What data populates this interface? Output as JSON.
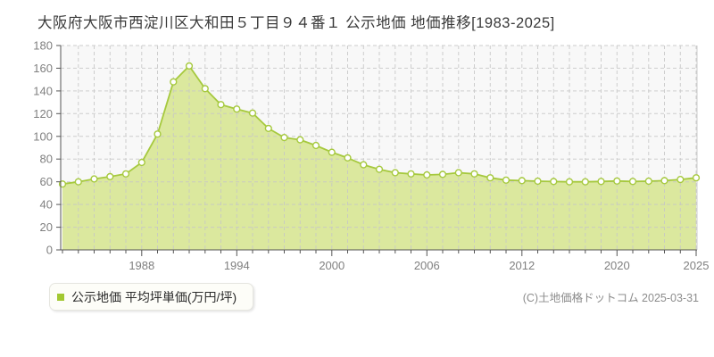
{
  "title": "大阪府大阪市西淀川区大和田５丁目９４番１ 公示地価 地価推移[1983-2025]",
  "legend": {
    "label": "公示地価 平均坪単価(万円/坪)",
    "bullet_color": "#a2c832"
  },
  "copyright": "(C)土地価格ドットコム 2025-03-31",
  "colors": {
    "line": "#a6c93e",
    "marker_fill": "#ffffff",
    "area_fill": "#dbe89e",
    "plot_bg": "#f8f8f8",
    "grid": "#c6c6c6",
    "axis": "#555555",
    "tick_label": "#808080",
    "border": "#cccccc"
  },
  "chart_data": {
    "type": "area",
    "title": "公示地価 地価推移[1983-2025]",
    "ylabel": "平均坪単価(万円/坪)",
    "ylim": [
      0,
      180
    ],
    "y_tick_step": 20,
    "y_tick_labels": [
      "0",
      "20",
      "40",
      "60",
      "80",
      "100",
      "120",
      "140",
      "160",
      "180"
    ],
    "grid": true,
    "legend_position": "bottom-left",
    "n_points": 41,
    "x_first_year": 1983,
    "x_last_year": 2025,
    "x_tick_labels": [
      "1988",
      "1994",
      "2000",
      "2006",
      "2012",
      "2020",
      "2025"
    ],
    "x_tick_indices": [
      5,
      11,
      17,
      23,
      29,
      35,
      40
    ],
    "series": [
      {
        "name": "公示地価 平均坪単価(万円/坪)",
        "values": [
          58,
          60,
          62.5,
          64.5,
          67,
          77,
          102,
          148,
          162,
          142,
          128,
          124,
          120.5,
          107,
          99,
          97,
          92,
          86,
          81,
          75,
          71,
          68,
          67,
          66,
          66.5,
          68,
          67,
          63.5,
          61.5,
          61,
          60.5,
          60.2,
          60,
          60,
          60.3,
          60.7,
          60.3,
          60.5,
          61,
          62,
          63.5
        ]
      }
    ]
  }
}
